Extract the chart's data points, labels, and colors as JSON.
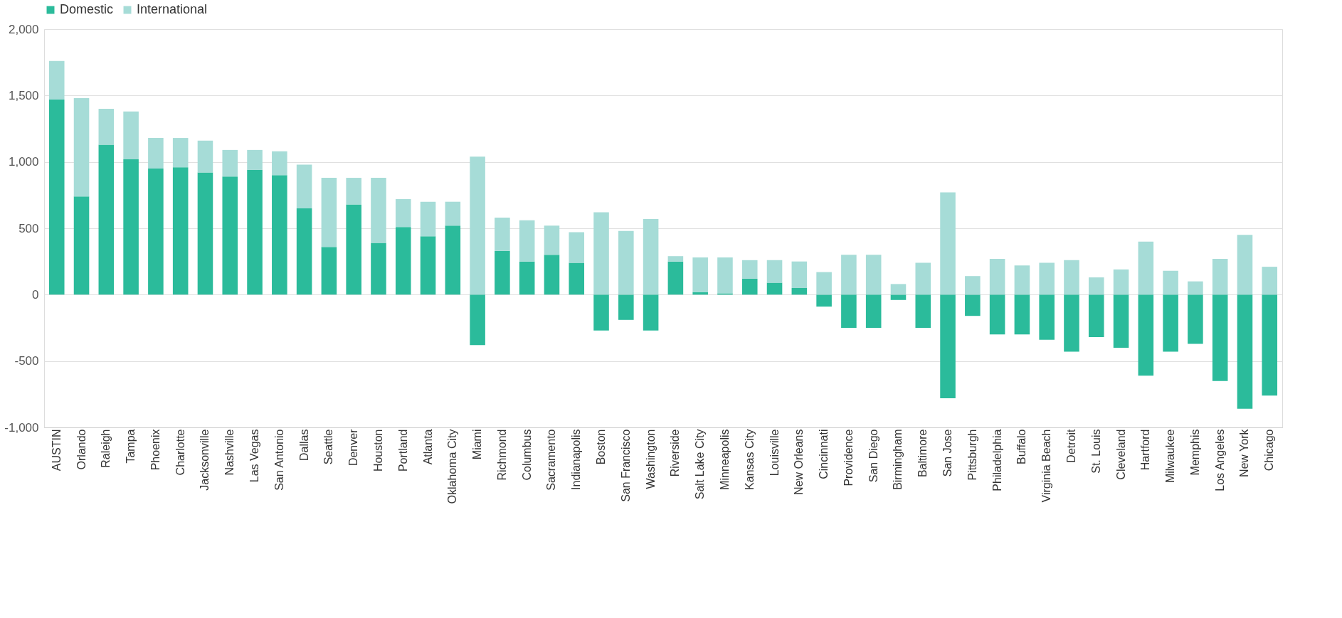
{
  "chart_data": {
    "type": "bar",
    "stacked": true,
    "legend": "top",
    "grid": "y",
    "categories": [
      "AUSTIN",
      "Orlando",
      "Raleigh",
      "Tampa",
      "Phoenix",
      "Charlotte",
      "Jacksonville",
      "Nashville",
      "Las Vegas",
      "San Antonio",
      "Dallas",
      "Seattle",
      "Denver",
      "Houston",
      "Portland",
      "Atlanta",
      "Oklahoma City",
      "Miami",
      "Richmond",
      "Columbus",
      "Sacramento",
      "Indianapolis",
      "Boston",
      "San Francisco",
      "Washington",
      "Riverside",
      "Salt Lake City",
      "Minneapolis",
      "Kansas City",
      "Louisville",
      "New Orleans",
      "Cincinnati",
      "Providence",
      "San Diego",
      "Birmingham",
      "Baltimore",
      "San Jose",
      "Pittsburgh",
      "Philadelphia",
      "Buffalo",
      "Virginia Beach",
      "Detroit",
      "St. Louis",
      "Cleveland",
      "Hartford",
      "Milwaukee",
      "Memphis",
      "Los Angeles",
      "New York",
      "Chicago"
    ],
    "series": [
      {
        "name": "Domestic",
        "color": "#2bbb9b",
        "values": [
          1470,
          740,
          1130,
          1020,
          950,
          960,
          920,
          890,
          940,
          900,
          650,
          360,
          680,
          390,
          510,
          440,
          520,
          -380,
          330,
          250,
          300,
          240,
          -270,
          -190,
          -270,
          250,
          20,
          10,
          120,
          90,
          50,
          -90,
          -250,
          -250,
          -40,
          -250,
          -780,
          -160,
          -300,
          -300,
          -340,
          -430,
          -320,
          -400,
          -610,
          -430,
          -370,
          -650,
          -860,
          -760
        ]
      },
      {
        "name": "International",
        "color": "#a6dcd7",
        "values": [
          290,
          740,
          270,
          360,
          230,
          220,
          240,
          200,
          150,
          180,
          330,
          520,
          200,
          490,
          210,
          260,
          180,
          1040,
          250,
          310,
          220,
          230,
          620,
          480,
          570,
          40,
          260,
          270,
          140,
          170,
          200,
          170,
          300,
          300,
          80,
          240,
          770,
          140,
          270,
          220,
          240,
          260,
          130,
          190,
          400,
          180,
          100,
          270,
          450,
          210
        ]
      }
    ],
    "ylim": [
      -1000,
      2000
    ],
    "yticks": [
      {
        "value": -1000,
        "label": "-1,000"
      },
      {
        "value": -500,
        "label": "-500"
      },
      {
        "value": 0,
        "label": "0"
      },
      {
        "value": 500,
        "label": "500"
      },
      {
        "value": 1000,
        "label": "1,000"
      },
      {
        "value": 1500,
        "label": "1,500"
      },
      {
        "value": 2000,
        "label": "2,000"
      }
    ]
  }
}
